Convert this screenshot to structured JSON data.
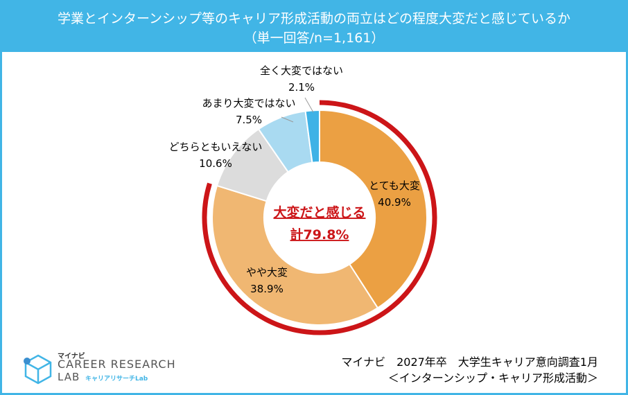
{
  "header": {
    "title": "学業とインターンシップ等のキャリア形成活動の両立はどの程度大変だと感じているか",
    "subtitle": "（単一回答/n=1,161）"
  },
  "chart_data": {
    "type": "pie",
    "slices": [
      {
        "label": "とても大変",
        "value": 40.9,
        "value_label": "40.9%",
        "color": "#eba043"
      },
      {
        "label": "やや大変",
        "value": 38.9,
        "value_label": "38.9%",
        "color": "#f0b772"
      },
      {
        "label": "どちらともいえない",
        "value": 10.6,
        "value_label": "10.6%",
        "color": "#dcdcdc"
      },
      {
        "label": "あまり大変ではない",
        "value": 7.5,
        "value_label": "7.5%",
        "color": "#a9daf1"
      },
      {
        "label": "全く大変ではない",
        "value": 2.1,
        "value_label": "2.1%",
        "color": "#3fb2e6"
      }
    ],
    "center": {
      "line1": "大変だと感じる",
      "line2": "計79.8%",
      "total": 79.8
    },
    "highlight_color": "#cc1518"
  },
  "source": {
    "line1": "マイナビ　2027年卒　大学生キャリア意向調査1月",
    "line2": "＜インターンシップ・キャリア形成活動＞"
  },
  "logo": {
    "top": "マイナビ",
    "main": "CAREER RESEARCH",
    "sub1": "LAB",
    "sub2": "キャリアリサーチLab"
  }
}
